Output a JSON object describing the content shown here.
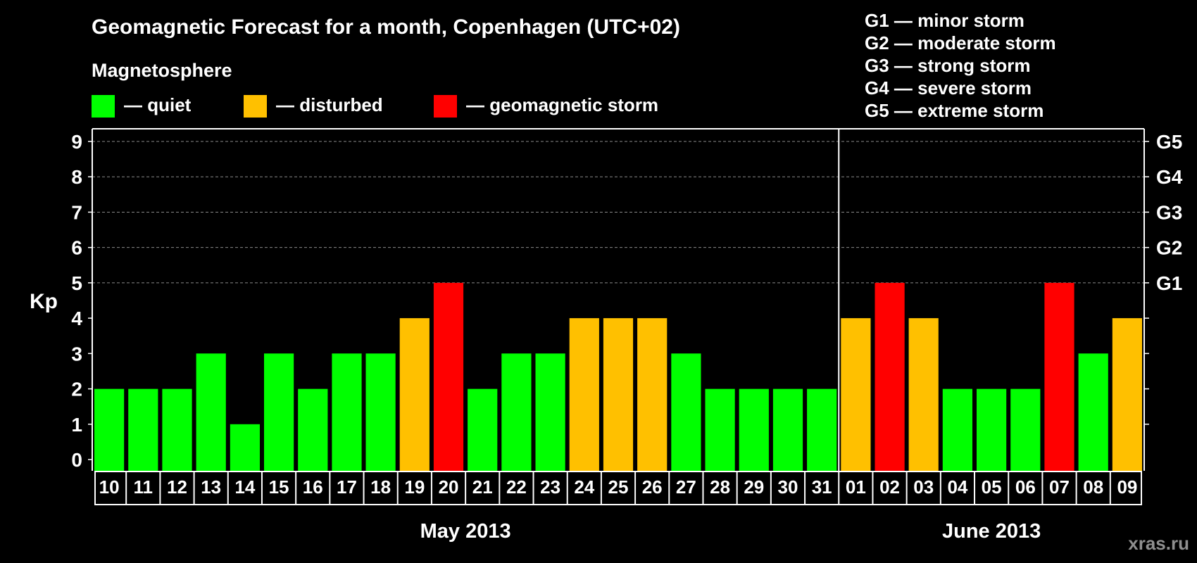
{
  "chart_data": {
    "type": "bar",
    "title": "Geomagnetic Forecast for a month, Copenhagen (UTC+02)",
    "subtitle": "Magnetosphere",
    "ylabel": "Kp",
    "ylim": [
      0,
      9
    ],
    "yticks": [
      "0",
      "1",
      "2",
      "3",
      "4",
      "5",
      "6",
      "7",
      "8",
      "9"
    ],
    "right_ticks": [
      {
        "kp": 5,
        "label": "G1"
      },
      {
        "kp": 6,
        "label": "G2"
      },
      {
        "kp": 7,
        "label": "G3"
      },
      {
        "kp": 8,
        "label": "G4"
      },
      {
        "kp": 9,
        "label": "G5"
      }
    ],
    "grid": true,
    "levels": {
      "quiet": {
        "label": "— quiet",
        "color": "#00ff00"
      },
      "disturbed": {
        "label": "— disturbed",
        "color": "#ffc000"
      },
      "storm": {
        "label": "— geomagnetic storm",
        "color": "#ff0000"
      }
    },
    "storm_scale": [
      "G1 — minor storm",
      "G2 — moderate storm",
      "G3 — strong storm",
      "G4 — severe storm",
      "G5 — extreme storm"
    ],
    "categories": [
      "10",
      "11",
      "12",
      "13",
      "14",
      "15",
      "16",
      "17",
      "18",
      "19",
      "20",
      "21",
      "22",
      "23",
      "24",
      "25",
      "26",
      "27",
      "28",
      "29",
      "30",
      "31",
      "01",
      "02",
      "03",
      "04",
      "05",
      "06",
      "07",
      "08",
      "09"
    ],
    "values": [
      2,
      2,
      2,
      3,
      1,
      3,
      2,
      3,
      3,
      4,
      5,
      2,
      3,
      3,
      4,
      4,
      4,
      3,
      2,
      2,
      2,
      2,
      4,
      5,
      4,
      2,
      2,
      2,
      5,
      3,
      4
    ],
    "months": [
      {
        "label": "May 2013",
        "first_index": 0,
        "last_index": 21
      },
      {
        "label": "June 2013",
        "first_index": 22,
        "last_index": 30
      }
    ],
    "watermark": "xras.ru"
  }
}
